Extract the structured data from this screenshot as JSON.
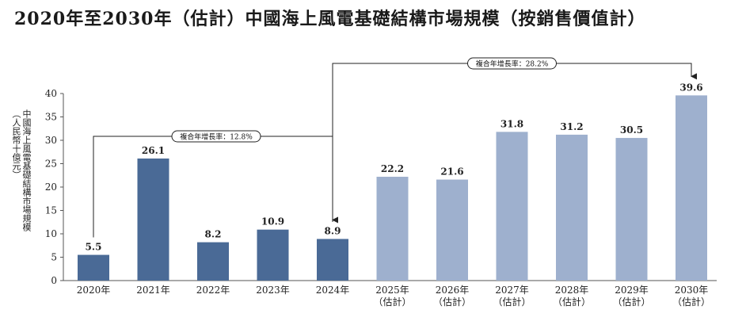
{
  "title": "2020年至2030年（估計）中國海上風電基礎結構市場規模（按銷售價值計）",
  "chart_data": {
    "type": "bar",
    "title": "2020年至2030年（估計）中國海上風電基礎結構市場規模（按銷售價值計）",
    "ylabel_lines": [
      "中國海上風電基礎結構市場規模",
      "（人民幣十億元）"
    ],
    "categories": [
      [
        "2020年"
      ],
      [
        "2021年"
      ],
      [
        "2022年"
      ],
      [
        "2023年"
      ],
      [
        "2024年"
      ],
      [
        "2025年",
        "（估計）"
      ],
      [
        "2026年",
        "（估計）"
      ],
      [
        "2027年",
        "（估計）"
      ],
      [
        "2028年",
        "（估計）"
      ],
      [
        "2029年",
        "（估計）"
      ],
      [
        "2030年",
        "（估計）"
      ]
    ],
    "values": [
      5.5,
      26.1,
      8.2,
      10.9,
      8.9,
      22.2,
      21.6,
      31.8,
      31.2,
      30.5,
      39.6
    ],
    "data_labels": [
      "5.5",
      "26.1",
      "8.2",
      "10.9",
      "8.9",
      "22.2",
      "21.6",
      "31.8",
      "31.2",
      "30.5",
      "39.6"
    ],
    "ylim": [
      0,
      40
    ],
    "yticks": [
      0,
      5,
      10,
      15,
      20,
      25,
      30,
      35,
      40
    ],
    "grid": false,
    "colors": {
      "historical": "#4a6a96",
      "forecast": "#9eb0ce"
    },
    "cagr_annotations": [
      {
        "label": "複合年增長率：12.8%",
        "from_index": 0,
        "to_index": 4
      },
      {
        "label": "複合年增長率：28.2%",
        "from_index": 4,
        "to_index": 10
      }
    ]
  }
}
